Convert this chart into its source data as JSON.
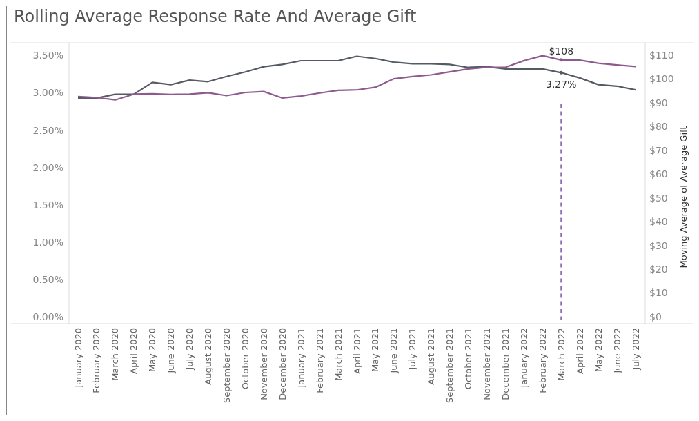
{
  "chart_data": {
    "type": "line",
    "title": "Rolling Average Response Rate And Average Gift",
    "y2label": "Moving Average of Average Gift",
    "categories": [
      "January 2020",
      "February 2020",
      "March 2020",
      "April 2020",
      "May 2020",
      "June 2020",
      "July 2020",
      "August 2020",
      "September 2020",
      "October 2020",
      "November 2020",
      "December 2020",
      "January 2021",
      "February 2021",
      "March 2021",
      "April 2021",
      "May 2021",
      "June 2021",
      "July 2021",
      "August 2021",
      "September 2021",
      "October 2021",
      "November 2021",
      "December 2021",
      "January 2022",
      "February 2022",
      "March 2022",
      "April 2022",
      "May 2022",
      "June 2022",
      "July 2022"
    ],
    "series": [
      {
        "color": "#555b63",
        "values": [
          2.93,
          2.93,
          2.98,
          2.98,
          3.14,
          3.11,
          3.17,
          3.15,
          3.22,
          3.28,
          3.35,
          3.38,
          3.43,
          3.43,
          3.43,
          3.49,
          3.46,
          3.41,
          3.39,
          3.39,
          3.38,
          3.34,
          3.35,
          3.32,
          3.32,
          3.32,
          3.27,
          3.2,
          3.11,
          3.09,
          3.04
        ],
        "value_labels": [
          null,
          null,
          null,
          null,
          null,
          null,
          null,
          null,
          null,
          null,
          null,
          null,
          null,
          null,
          null,
          null,
          null,
          null,
          null,
          null,
          null,
          null,
          null,
          null,
          null,
          null,
          "3.27%",
          null,
          null,
          null,
          null
        ]
      },
      {
        "color": "#8e5a8e",
        "axis": "y2",
        "values": [
          92.6,
          92.2,
          91.2,
          93.6,
          93.8,
          93.5,
          93.6,
          94.2,
          93.0,
          94.3,
          94.7,
          92.0,
          92.8,
          94.1,
          95.2,
          95.4,
          96.5,
          100.1,
          101.0,
          101.7,
          103.0,
          104.2,
          104.9,
          104.9,
          107.7,
          109.8,
          108,
          107.9,
          106.6,
          105.9,
          105.2
        ],
        "value_labels": [
          null,
          null,
          null,
          null,
          null,
          null,
          null,
          null,
          null,
          null,
          null,
          null,
          null,
          null,
          null,
          null,
          null,
          null,
          null,
          null,
          null,
          null,
          null,
          null,
          null,
          null,
          "$108",
          null,
          null,
          null,
          null
        ]
      }
    ],
    "ylim": [
      -0.09,
      3.67
    ],
    "yticks": [
      {
        "value": 0,
        "label": "0.00%"
      },
      {
        "value": 0.5,
        "label": "0.50%"
      },
      {
        "value": 1,
        "label": "1.00%"
      },
      {
        "value": 1.5,
        "label": "1.50%"
      },
      {
        "value": 2,
        "label": "2.00%"
      },
      {
        "value": 2.5,
        "label": "2.50%"
      },
      {
        "value": 3,
        "label": "3.00%"
      },
      {
        "value": 3.5,
        "label": "3.50%"
      }
    ],
    "y2lim": [
      -2.9,
      115.2
    ],
    "y2ticks": [
      {
        "value": 0,
        "label": "$0"
      },
      {
        "value": 10,
        "label": "$10"
      },
      {
        "value": 20,
        "label": "$20"
      },
      {
        "value": 30,
        "label": "$30"
      },
      {
        "value": 40,
        "label": "$40"
      },
      {
        "value": 50,
        "label": "$50"
      },
      {
        "value": 60,
        "label": "$60"
      },
      {
        "value": 70,
        "label": "$70"
      },
      {
        "value": 80,
        "label": "$80"
      },
      {
        "value": 90,
        "label": "$90"
      },
      {
        "value": 100,
        "label": "$100"
      },
      {
        "value": 110,
        "label": "$110"
      }
    ],
    "ref_lines": [
      {
        "axis": "x",
        "value": "March 2022",
        "color": "#8e6bb8",
        "line_style": "dashed"
      }
    ]
  }
}
